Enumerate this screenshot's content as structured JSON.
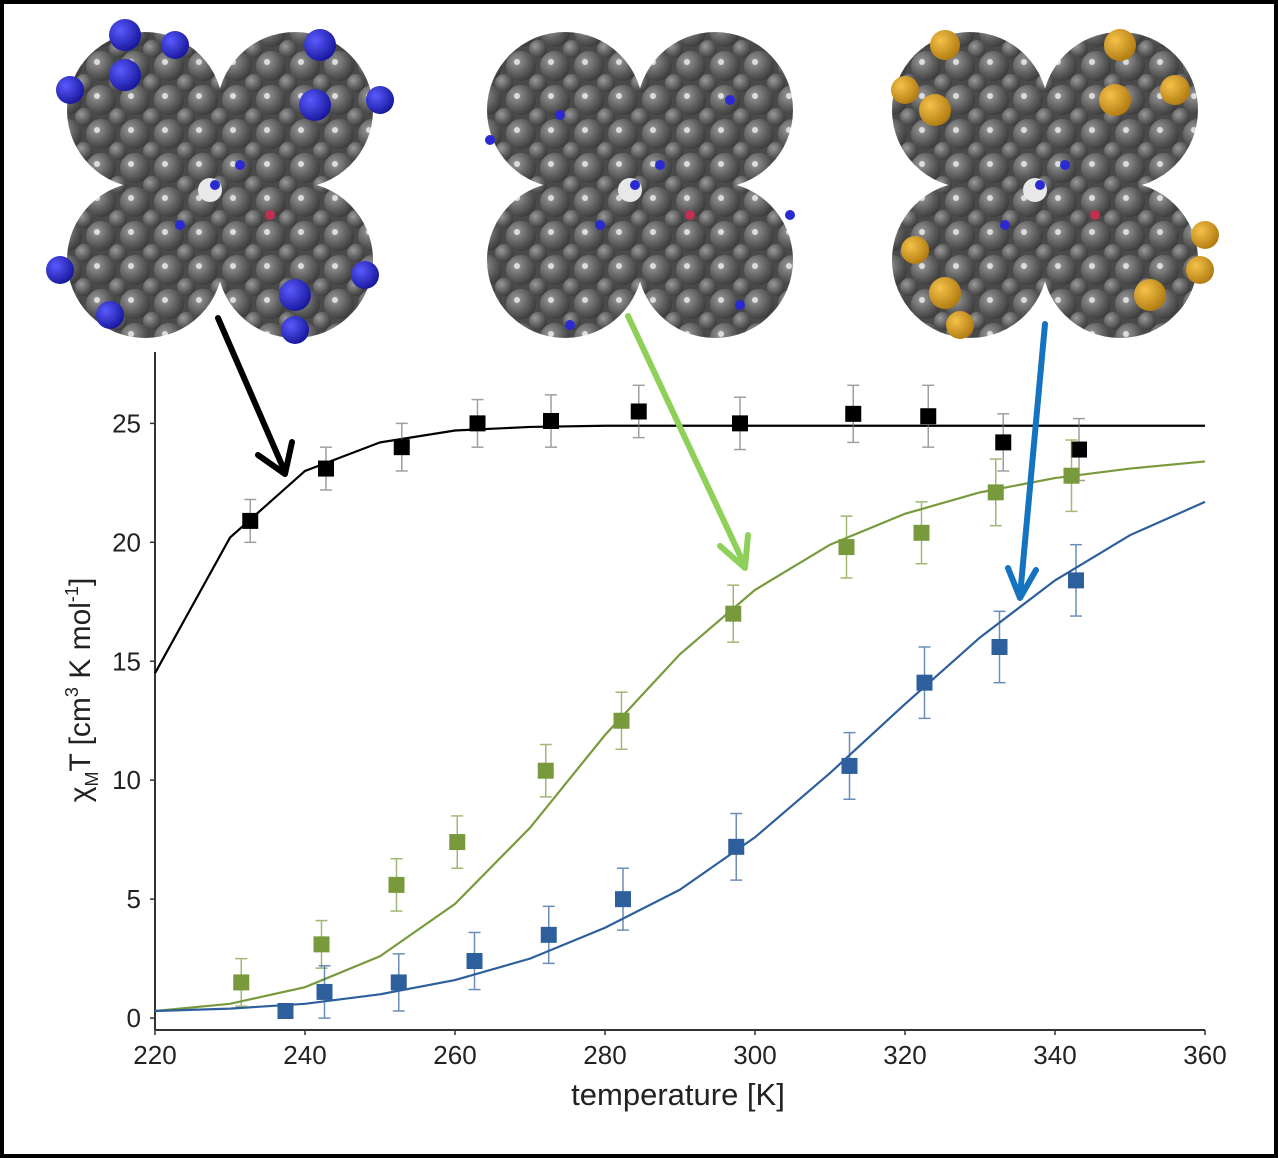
{
  "chart_data": {
    "type": "scatter",
    "ylabel": [
      "χ",
      "M",
      "T [cm",
      "3",
      " K mol",
      "-1",
      "]"
    ],
    "xlabel": "temperature [K]",
    "xlim": [
      220,
      360
    ],
    "xticks": [
      220,
      240,
      260,
      280,
      300,
      320,
      340,
      360
    ],
    "ylim": [
      -0.5,
      28
    ],
    "yticks": [
      0,
      5,
      10,
      15,
      20,
      25
    ],
    "series": [
      {
        "color": "#000000",
        "x": [
          232.7,
          242.8,
          252.9,
          263.0,
          272.8,
          284.5,
          298.0,
          313.1,
          323.1,
          333.1,
          343.2
        ],
        "values": [
          20.9,
          23.1,
          24.0,
          25.0,
          25.1,
          25.5,
          25.0,
          25.4,
          25.3,
          24.2,
          23.9
        ],
        "errors": [
          0.9,
          0.9,
          1.0,
          1.0,
          1.1,
          1.1,
          1.1,
          1.2,
          1.3,
          1.2,
          1.3
        ]
      },
      {
        "color": "#789a3c",
        "x": [
          231.5,
          242.2,
          252.2,
          260.3,
          272.1,
          282.2,
          297.1,
          312.2,
          322.2,
          332.1,
          342.2
        ],
        "values": [
          1.5,
          3.1,
          5.6,
          7.4,
          10.4,
          12.5,
          17.0,
          19.8,
          20.4,
          22.1,
          22.8
        ],
        "errors": [
          1.0,
          1.0,
          1.1,
          1.1,
          1.1,
          1.2,
          1.2,
          1.3,
          1.3,
          1.4,
          1.5
        ]
      },
      {
        "color": "#2d5f9c",
        "x": [
          237.4,
          242.6,
          252.5,
          262.6,
          272.5,
          282.4,
          297.5,
          312.6,
          322.6,
          332.6,
          342.8
        ],
        "values": [
          0.3,
          1.1,
          1.5,
          2.4,
          3.5,
          5.0,
          7.2,
          10.6,
          14.1,
          15.6,
          18.4
        ],
        "errors": [
          0.3,
          1.1,
          1.2,
          1.2,
          1.2,
          1.3,
          1.4,
          1.4,
          1.5,
          1.5,
          1.5
        ]
      }
    ],
    "fits": [
      {
        "color": "#000000",
        "x": [
          220,
          230,
          240,
          250,
          260,
          270,
          280,
          290,
          300,
          310,
          320,
          330,
          340,
          350,
          360
        ],
        "values": [
          14.5,
          20.2,
          23.0,
          24.2,
          24.7,
          24.85,
          24.9,
          24.9,
          24.9,
          24.9,
          24.9,
          24.9,
          24.9,
          24.9,
          24.9
        ]
      },
      {
        "color": "#789a3c",
        "x": [
          220,
          230,
          240,
          250,
          260,
          270,
          280,
          290,
          300,
          310,
          320,
          330,
          340,
          350,
          360
        ],
        "values": [
          0.3,
          0.6,
          1.3,
          2.6,
          4.8,
          8.0,
          11.9,
          15.3,
          18.0,
          19.9,
          21.2,
          22.1,
          22.7,
          23.1,
          23.4
        ]
      },
      {
        "color": "#2d5f9c",
        "x": [
          220,
          230,
          240,
          250,
          260,
          270,
          280,
          290,
          300,
          310,
          320,
          330,
          340,
          350,
          360
        ],
        "values": [
          0.3,
          0.4,
          0.6,
          1.0,
          1.6,
          2.5,
          3.8,
          5.4,
          7.6,
          10.3,
          13.2,
          16.0,
          18.4,
          20.3,
          21.7
        ]
      }
    ]
  }
}
